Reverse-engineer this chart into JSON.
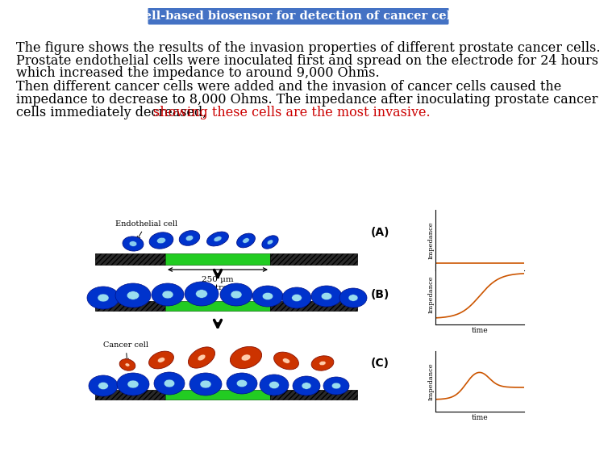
{
  "title": "Cell-based biosensor for detection of cancer cells",
  "title_bg": "#4472c4",
  "title_color": "#ffffff",
  "para1_line1": "The figure shows the results of the invasion properties of different prostate cancer cells.",
  "para1_line2": "Prostate endothelial cells were inoculated first and spread on the electrode for 24 hours",
  "para1_line3": "which increased the impedance to around 9,000 Ohms.",
  "para2_line1": "Then different cancer cells were added and the invasion of cancer cells caused the",
  "para2_line2": "impedance to decrease to 8,000 Ohms. The impedance after inoculating prostate cancer",
  "para2_line3_black": "cells immediately decreased, ",
  "para2_line3_red": "showing these cells are the most invasive.",
  "body_text_color": "#000000",
  "highlight_color": "#cc0000",
  "bg_color": "#ffffff",
  "font_size_body": 11.5,
  "title_fontsize": 10.5
}
